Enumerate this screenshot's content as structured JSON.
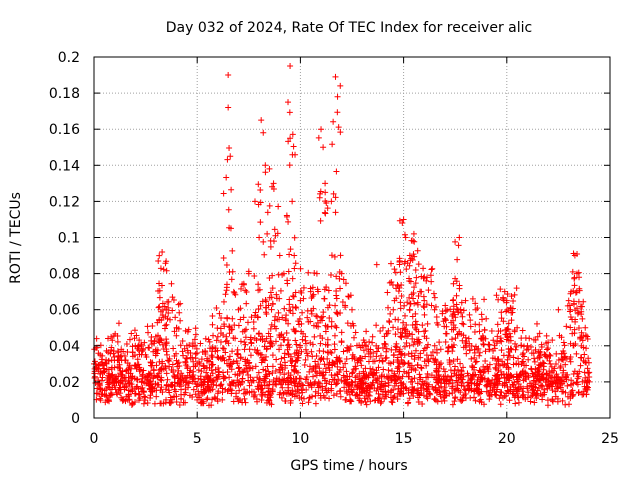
{
  "chart_data": {
    "type": "scatter",
    "title": "Day 032 of 2024, Rate Of TEC Index for receiver alic",
    "xlabel": "GPS time / hours",
    "ylabel": "ROTI / TECUs",
    "xlim": [
      0,
      25
    ],
    "ylim": [
      0,
      0.2
    ],
    "x_ticks": [
      0,
      5,
      10,
      15,
      20,
      25
    ],
    "y_ticks": [
      0,
      0.02,
      0.04,
      0.06,
      0.08,
      0.1,
      0.12,
      0.14,
      0.16,
      0.18,
      0.2
    ],
    "x_tick_labels": [
      "0",
      "5",
      "10",
      "15",
      "20",
      "25"
    ],
    "y_tick_labels": [
      "0",
      "0.02",
      "0.04",
      "0.06",
      "0.08",
      "0.1",
      "0.12",
      "0.14",
      "0.16",
      "0.18",
      "0.2"
    ],
    "grid": true,
    "marker": "+",
    "color": "#ff0000",
    "series": [
      {
        "name": "ROTI",
        "description": "Dense scatter of ROTI values sampled across 0-24 h; baseline ~0.005-0.03 TECU/s with peaks",
        "x": [
          0.0,
          0.3,
          0.6,
          1.0,
          1.5,
          2.0,
          2.5,
          3.0,
          3.3,
          3.5,
          3.8,
          4.0,
          4.5,
          5.0,
          5.5,
          6.0,
          6.3,
          6.5,
          6.5,
          6.6,
          7.0,
          7.5,
          7.8,
          8.0,
          8.1,
          8.2,
          8.3,
          8.5,
          8.7,
          9.0,
          9.2,
          9.4,
          9.5,
          9.5,
          9.6,
          9.7,
          10.0,
          10.5,
          10.8,
          11.0,
          11.1,
          11.2,
          11.5,
          11.7,
          11.8,
          12.0,
          12.5,
          13.0,
          13.5,
          13.7,
          14.0,
          14.5,
          14.8,
          15.0,
          15.1,
          15.3,
          15.5,
          15.8,
          16.0,
          16.5,
          17.0,
          17.5,
          17.7,
          18.0,
          18.5,
          19.0,
          19.5,
          19.9,
          20.0,
          20.5,
          21.0,
          21.5,
          22.0,
          22.5,
          23.0,
          23.3,
          23.4,
          23.5,
          23.8,
          24.0
        ],
        "y": [
          0.03,
          0.035,
          0.03,
          0.028,
          0.032,
          0.04,
          0.035,
          0.045,
          0.092,
          0.06,
          0.067,
          0.05,
          0.04,
          0.03,
          0.02,
          0.045,
          0.052,
          0.19,
          0.172,
          0.145,
          0.06,
          0.08,
          0.12,
          0.1,
          0.165,
          0.158,
          0.14,
          0.138,
          0.13,
          0.09,
          0.08,
          0.175,
          0.195,
          0.155,
          0.12,
          0.09,
          0.065,
          0.07,
          0.08,
          0.16,
          0.15,
          0.125,
          0.12,
          0.189,
          0.178,
          0.08,
          0.06,
          0.04,
          0.045,
          0.085,
          0.05,
          0.06,
          0.072,
          0.11,
          0.1,
          0.09,
          0.102,
          0.07,
          0.065,
          0.06,
          0.055,
          0.05,
          0.1,
          0.065,
          0.06,
          0.055,
          0.068,
          0.07,
          0.065,
          0.05,
          0.04,
          0.045,
          0.042,
          0.06,
          0.065,
          0.09,
          0.08,
          0.078,
          0.05,
          0.02
        ]
      }
    ]
  }
}
